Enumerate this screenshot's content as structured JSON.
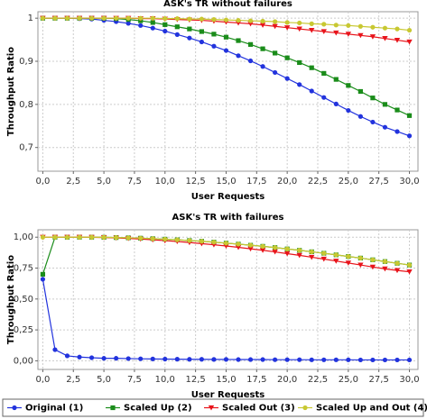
{
  "chart_data": [
    {
      "type": "line",
      "title": "ASK's TR without failures",
      "xlabel": "User Requests",
      "ylabel": "Throughput Ratio",
      "x": [
        0,
        1,
        2,
        3,
        4,
        5,
        6,
        7,
        8,
        9,
        10,
        11,
        12,
        13,
        14,
        15,
        16,
        17,
        18,
        19,
        20,
        21,
        22,
        23,
        24,
        25,
        26,
        27,
        28,
        29,
        30
      ],
      "series": [
        {
          "color": "#2233dd",
          "values": [
            1,
            1,
            1,
            0.999,
            0.998,
            0.995,
            0.992,
            0.988,
            0.983,
            0.977,
            0.97,
            0.962,
            0.954,
            0.945,
            0.935,
            0.925,
            0.913,
            0.901,
            0.888,
            0.874,
            0.86,
            0.846,
            0.831,
            0.816,
            0.801,
            0.786,
            0.772,
            0.759,
            0.747,
            0.737,
            0.727
          ]
        },
        {
          "color": "#1a8c1a",
          "values": [
            1,
            1,
            1,
            1,
            1,
            1,
            0.999,
            0.997,
            0.994,
            0.99,
            0.985,
            0.98,
            0.975,
            0.969,
            0.963,
            0.956,
            0.948,
            0.939,
            0.929,
            0.919,
            0.908,
            0.897,
            0.885,
            0.872,
            0.858,
            0.844,
            0.83,
            0.815,
            0.8,
            0.787,
            0.774
          ]
        },
        {
          "color": "#e8141b",
          "values": [
            1,
            1,
            1,
            1,
            1,
            1,
            1,
            1,
            0.999,
            0.999,
            0.998,
            0.997,
            0.996,
            0.995,
            0.993,
            0.991,
            0.989,
            0.987,
            0.984,
            0.981,
            0.978,
            0.975,
            0.972,
            0.969,
            0.966,
            0.963,
            0.96,
            0.957,
            0.953,
            0.949,
            0.945
          ]
        },
        {
          "color": "#c8c832",
          "values": [
            1,
            1,
            1,
            1,
            1,
            1,
            1,
            1,
            1,
            1,
            0.999,
            0.999,
            0.998,
            0.998,
            0.997,
            0.996,
            0.995,
            0.994,
            0.993,
            0.992,
            0.99,
            0.989,
            0.987,
            0.986,
            0.984,
            0.983,
            0.981,
            0.979,
            0.977,
            0.975,
            0.972
          ]
        }
      ],
      "xlim": [
        -0.4,
        30.7
      ],
      "xticks": [
        {
          "value": 0,
          "label": "0,0"
        },
        {
          "value": 2.5,
          "label": "2,5"
        },
        {
          "value": 5,
          "label": "5,0"
        },
        {
          "value": 7.5,
          "label": "7,5"
        },
        {
          "value": 10,
          "label": "10,0"
        },
        {
          "value": 12.5,
          "label": "12,5"
        },
        {
          "value": 15,
          "label": "15,0"
        },
        {
          "value": 17.5,
          "label": "17,5"
        },
        {
          "value": 20,
          "label": "20,0"
        },
        {
          "value": 22.5,
          "label": "22,5"
        },
        {
          "value": 25,
          "label": "25,0"
        },
        {
          "value": 27.5,
          "label": "27,5"
        },
        {
          "value": 30,
          "label": "30,0"
        }
      ],
      "ylim": [
        0.645,
        1.015
      ],
      "yticks": [
        {
          "value": 0.7,
          "label": "0,7"
        },
        {
          "value": 0.8,
          "label": "0,8"
        },
        {
          "value": 0.9,
          "label": "0,9"
        },
        1
      ],
      "grid": true
    },
    {
      "type": "line",
      "title": "ASK's TR with failures",
      "xlabel": "User Requests",
      "ylabel": "Throughput Ratio",
      "x": [
        0,
        1,
        2,
        3,
        4,
        5,
        6,
        7,
        8,
        9,
        10,
        11,
        12,
        13,
        14,
        15,
        16,
        17,
        18,
        19,
        20,
        21,
        22,
        23,
        24,
        25,
        26,
        27,
        28,
        29,
        30
      ],
      "series": [
        {
          "name": "Original (1)",
          "color": "#2233dd",
          "values": [
            0.66,
            0.09,
            0.04,
            0.03,
            0.025,
            0.02,
            0.02,
            0.018,
            0.016,
            0.015,
            0.014,
            0.013,
            0.012,
            0.012,
            0.011,
            0.011,
            0.01,
            0.01,
            0.01,
            0.009,
            0.009,
            0.009,
            0.008,
            0.008,
            0.008,
            0.008,
            0.007,
            0.007,
            0.007,
            0.007,
            0.007
          ]
        },
        {
          "name": "Scaled Up (2)",
          "color": "#1a8c1a",
          "values": [
            0.7,
            1,
            1,
            1,
            1,
            0.999,
            0.997,
            0.995,
            0.992,
            0.988,
            0.984,
            0.979,
            0.973,
            0.967,
            0.96,
            0.952,
            0.944,
            0.935,
            0.926,
            0.916,
            0.905,
            0.894,
            0.882,
            0.87,
            0.857,
            0.844,
            0.831,
            0.817,
            0.803,
            0.789,
            0.775
          ]
        },
        {
          "name": "Scaled Out (3)",
          "color": "#e8141b",
          "values": [
            1,
            1,
            1,
            1,
            0.999,
            0.997,
            0.994,
            0.99,
            0.985,
            0.979,
            0.972,
            0.965,
            0.957,
            0.948,
            0.939,
            0.929,
            0.918,
            0.906,
            0.894,
            0.881,
            0.867,
            0.853,
            0.838,
            0.823,
            0.807,
            0.791,
            0.775,
            0.759,
            0.744,
            0.731,
            0.72
          ]
        },
        {
          "name": "Scaled Up and Out (4)",
          "color": "#c8c832",
          "values": [
            1,
            1,
            1,
            1,
            1,
            0.999,
            0.997,
            0.995,
            0.992,
            0.988,
            0.984,
            0.979,
            0.973,
            0.967,
            0.96,
            0.952,
            0.944,
            0.935,
            0.926,
            0.916,
            0.905,
            0.894,
            0.882,
            0.87,
            0.857,
            0.844,
            0.831,
            0.817,
            0.803,
            0.789,
            0.775
          ]
        }
      ],
      "xlim": [
        -0.4,
        30.7
      ],
      "xticks": [
        {
          "value": 0,
          "label": "0,0"
        },
        {
          "value": 2.5,
          "label": "2,5"
        },
        {
          "value": 5,
          "label": "5,0"
        },
        {
          "value": 7.5,
          "label": "7,5"
        },
        {
          "value": 10,
          "label": "10,0"
        },
        {
          "value": 12.5,
          "label": "12,5"
        },
        {
          "value": 15,
          "label": "15,0"
        },
        {
          "value": 17.5,
          "label": "17,5"
        },
        {
          "value": 20,
          "label": "20,0"
        },
        {
          "value": 22.5,
          "label": "22,5"
        },
        {
          "value": 25,
          "label": "25,0"
        },
        {
          "value": 27.5,
          "label": "27,5"
        },
        {
          "value": 30,
          "label": "30,0"
        }
      ],
      "ylim": [
        -0.07,
        1.06
      ],
      "yticks": [
        {
          "value": 0,
          "label": "0,00"
        },
        {
          "value": 0.25,
          "label": "0,25"
        },
        {
          "value": 0.5,
          "label": "0,50"
        },
        {
          "value": 0.75,
          "label": "0,75"
        },
        {
          "value": 1,
          "label": "1,00"
        }
      ],
      "grid": true
    }
  ]
}
